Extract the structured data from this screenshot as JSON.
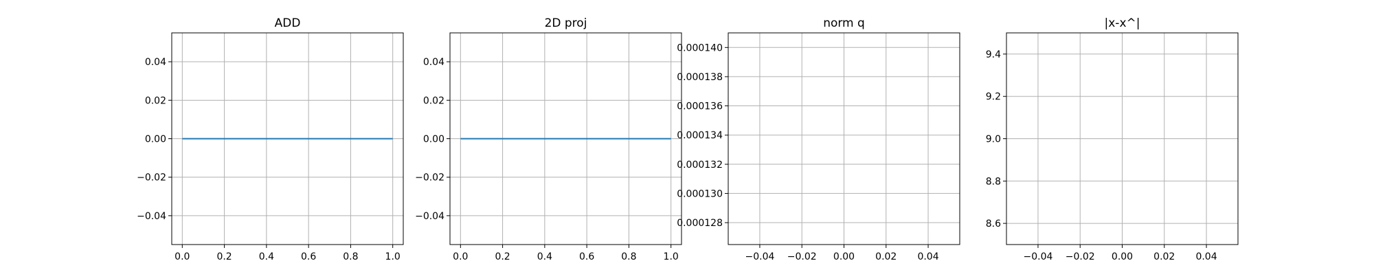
{
  "colors": {
    "series": "#1f77b4",
    "grid": "#b0b0b0",
    "axes": "#000000"
  },
  "chart_data": [
    {
      "type": "line",
      "title": "ADD",
      "grid": true,
      "xlim": [
        -0.05,
        1.05
      ],
      "ylim": [
        -0.055,
        0.055
      ],
      "xticks": [
        0.0,
        0.2,
        0.4,
        0.6,
        0.8,
        1.0
      ],
      "xtick_labels": [
        "0.0",
        "0.2",
        "0.4",
        "0.6",
        "0.8",
        "1.0"
      ],
      "yticks": [
        0.04,
        0.02,
        0.0,
        -0.02,
        -0.04
      ],
      "ytick_labels": [
        "0.04",
        "0.02",
        "0.00",
        "−0.02",
        "−0.04"
      ],
      "series": [
        {
          "x": [
            0.0,
            1.0
          ],
          "y": [
            0.0,
            0.0
          ]
        }
      ]
    },
    {
      "type": "line",
      "title": "2D proj",
      "grid": true,
      "xlim": [
        -0.05,
        1.05
      ],
      "ylim": [
        -0.055,
        0.055
      ],
      "xticks": [
        0.0,
        0.2,
        0.4,
        0.6,
        0.8,
        1.0
      ],
      "xtick_labels": [
        "0.0",
        "0.2",
        "0.4",
        "0.6",
        "0.8",
        "1.0"
      ],
      "yticks": [
        0.04,
        0.02,
        0.0,
        -0.02,
        -0.04
      ],
      "ytick_labels": [
        "0.04",
        "0.02",
        "0.00",
        "−0.02",
        "−0.04"
      ],
      "series": [
        {
          "x": [
            0.0,
            1.0
          ],
          "y": [
            0.0,
            0.0
          ]
        }
      ]
    },
    {
      "type": "line",
      "title": "norm q",
      "grid": true,
      "xlim": [
        -0.055,
        0.055
      ],
      "ylim": [
        0.0001265,
        0.000141
      ],
      "xticks": [
        -0.04,
        -0.02,
        0.0,
        0.02,
        0.04
      ],
      "xtick_labels": [
        "−0.04",
        "−0.02",
        "0.00",
        "0.02",
        "0.04"
      ],
      "yticks": [
        0.00014,
        0.000138,
        0.000136,
        0.000134,
        0.000132,
        0.00013,
        0.000128
      ],
      "ytick_labels": [
        "0.000140",
        "0.000138",
        "0.000136",
        "0.000134",
        "0.000132",
        "0.000130",
        "0.000128"
      ],
      "series": []
    },
    {
      "type": "line",
      "title": "|x-x^|",
      "grid": true,
      "xlim": [
        -0.055,
        0.055
      ],
      "ylim": [
        8.5,
        9.5
      ],
      "xticks": [
        -0.04,
        -0.02,
        0.0,
        0.02,
        0.04
      ],
      "xtick_labels": [
        "−0.04",
        "−0.02",
        "0.00",
        "0.02",
        "0.04"
      ],
      "yticks": [
        9.4,
        9.2,
        9.0,
        8.8,
        8.6
      ],
      "ytick_labels": [
        "9.4",
        "9.2",
        "9.0",
        "8.8",
        "8.6"
      ],
      "series": []
    }
  ]
}
